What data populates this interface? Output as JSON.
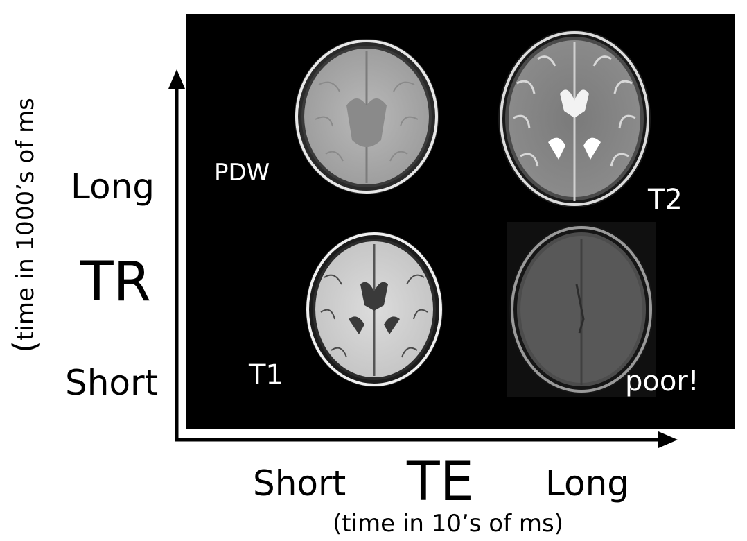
{
  "y_axis": {
    "title": "TR",
    "high_label": "Long",
    "low_label": "Short",
    "unit_open": "(",
    "unit_text": "time in 1000’s of ms"
  },
  "x_axis": {
    "title": "TE",
    "low_label": "Short",
    "high_label": "Long",
    "unit": "(time in 10’s of ms)"
  },
  "quadrants": {
    "top_left": "PDW",
    "top_right": "T2",
    "bottom_left": "T1",
    "bottom_right": "poor!"
  },
  "colors": {
    "panel_background": "#000000",
    "panel_text": "#ffffff",
    "axis": "#000000"
  },
  "images": {
    "top_left": "brain-mri-proton-density",
    "top_right": "brain-mri-t2",
    "bottom_left": "brain-mri-t1",
    "bottom_right": "brain-mri-noisy"
  }
}
